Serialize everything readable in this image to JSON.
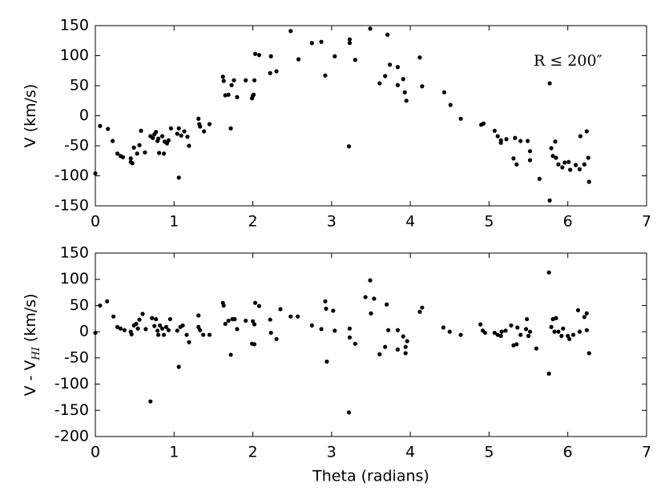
{
  "chart_data": [
    {
      "type": "scatter",
      "ylabel": "V (km/s)",
      "annotation": "R ≤ 200″",
      "color": "#000000",
      "xlim": [
        0,
        7
      ],
      "xticks": [
        0,
        1,
        2,
        3,
        4,
        5,
        6,
        7
      ],
      "ylim": [
        -150,
        150
      ],
      "yticks": [
        -150,
        -100,
        -50,
        0,
        50,
        100,
        150
      ],
      "x": [
        0,
        0.06,
        0.16,
        0.22,
        0.28,
        0.32,
        0.35,
        0.45,
        0.45,
        0.47,
        0.49,
        0.53,
        0.56,
        0.58,
        0.63,
        0.7,
        0.73,
        0.75,
        0.77,
        0.79,
        0.8,
        0.81,
        0.85,
        0.87,
        0.88,
        0.91,
        0.93,
        0.96,
        1.04,
        1.06,
        1.06,
        1.09,
        1.13,
        1.17,
        1.19,
        1.31,
        1.32,
        1.33,
        1.38,
        1.45,
        1.62,
        1.63,
        1.65,
        1.69,
        1.72,
        1.73,
        1.76,
        1.8,
        1.91,
        1.99,
        2.0,
        2.01,
        2.02,
        2.03,
        2.08,
        2.22,
        2.23,
        2.3,
        2.48,
        2.58,
        2.75,
        2.87,
        2.92,
        3.04,
        3.22,
        3.23,
        3.23,
        3.3,
        3.49,
        3.61,
        3.68,
        3.71,
        3.74,
        3.84,
        3.84,
        3.91,
        3.93,
        3.95,
        4.12,
        4.15,
        4.43,
        4.51,
        4.64,
        4.9,
        4.93,
        5.07,
        5.11,
        5.15,
        5.15,
        5.22,
        5.31,
        5.33,
        5.35,
        5.4,
        5.49,
        5.52,
        5.52,
        5.64,
        5.77,
        5.77,
        5.79,
        5.81,
        5.84,
        5.85,
        5.88,
        5.93,
        5.96,
        6.01,
        6.03,
        6.1,
        6.15,
        6.16,
        6.21,
        6.24,
        6.26,
        6.27
      ],
      "values": [
        -96,
        -17,
        -22,
        -42,
        -63,
        -67,
        -69,
        -71,
        -77,
        -79,
        -53,
        -63,
        -49,
        -25,
        -61,
        -34,
        -37,
        -31,
        -27,
        -42,
        -38,
        -62,
        -34,
        -63,
        -43,
        -46,
        -41,
        -21,
        -30,
        -21,
        -103,
        -33,
        -26,
        -35,
        -50,
        -5,
        -14,
        -18,
        -26,
        -14,
        65,
        58,
        34,
        35,
        -21,
        51,
        59,
        31,
        59,
        29,
        33,
        35,
        59,
        103,
        101,
        71,
        99,
        74,
        141,
        94,
        121,
        123,
        67,
        99,
        -51,
        127,
        121,
        93,
        145,
        54,
        66,
        135,
        85,
        81,
        51,
        61,
        39,
        25,
        97,
        49,
        39,
        18,
        -5,
        -15,
        -13,
        -25,
        -34,
        -41,
        -45,
        -39,
        -71,
        -37,
        -81,
        -42,
        -42,
        -59,
        -74,
        -105,
        54,
        -141,
        -54,
        -67,
        -43,
        -70,
        -81,
        -86,
        -78,
        -77,
        -90,
        -82,
        -89,
        -34,
        -81,
        -26,
        -70,
        -110
      ]
    },
    {
      "type": "scatter",
      "ylabel": [
        "V - V",
        "HI",
        " (km/s)"
      ],
      "xlabel": "Theta (radians)",
      "color": "#000000",
      "xlim": [
        0,
        7
      ],
      "xticks": [
        0,
        1,
        2,
        3,
        4,
        5,
        6,
        7
      ],
      "ylim": [
        -200,
        150
      ],
      "yticks": [
        -200,
        -150,
        -100,
        -50,
        0,
        50,
        100,
        150
      ],
      "x": [
        0,
        0.06,
        0.15,
        0.23,
        0.28,
        0.32,
        0.37,
        0.45,
        0.46,
        0.49,
        0.52,
        0.54,
        0.56,
        0.6,
        0.64,
        0.7,
        0.72,
        0.75,
        0.77,
        0.79,
        0.8,
        0.82,
        0.85,
        0.87,
        0.9,
        0.93,
        0.95,
        1.04,
        1.06,
        1.08,
        1.11,
        1.16,
        1.19,
        1.31,
        1.31,
        1.33,
        1.37,
        1.45,
        1.62,
        1.63,
        1.65,
        1.69,
        1.72,
        1.74,
        1.77,
        1.8,
        1.91,
        1.99,
        2.0,
        2.02,
        2.02,
        2.03,
        2.08,
        2.22,
        2.23,
        2.3,
        2.35,
        2.48,
        2.57,
        2.75,
        2.87,
        2.92,
        2.94,
        2.93,
        3.02,
        3.04,
        3.22,
        3.23,
        3.23,
        3.3,
        3.43,
        3.49,
        3.5,
        3.54,
        3.61,
        3.68,
        3.7,
        3.72,
        3.84,
        3.84,
        3.91,
        3.94,
        3.94,
        3.96,
        4.12,
        4.15,
        4.42,
        4.5,
        4.64,
        4.89,
        4.92,
        4.95,
        5.07,
        5.11,
        5.15,
        5.16,
        5.21,
        5.28,
        5.31,
        5.35,
        5.36,
        5.4,
        5.47,
        5.48,
        5.5,
        5.52,
        5.6,
        5.76,
        5.76,
        5.79,
        5.81,
        5.83,
        5.85,
        5.88,
        5.92,
        5.94,
        6.0,
        6.02,
        6.07,
        6.13,
        6.15,
        6.21,
        6.24,
        6.27,
        6.24
      ],
      "values": [
        -2,
        50,
        58,
        29,
        9,
        6,
        3,
        0,
        -5,
        12,
        15,
        6,
        23,
        34,
        5,
        -133,
        26,
        11,
        24,
        2,
        -6,
        12,
        6,
        -6,
        9,
        3,
        24,
        2,
        -67,
        9,
        12,
        -6,
        -20,
        31,
        9,
        3,
        -6,
        -6,
        55,
        50,
        15,
        21,
        -44,
        24,
        24,
        5,
        21,
        -23,
        20,
        -24,
        14,
        55,
        49,
        23,
        -2,
        -14,
        43,
        29,
        29,
        12,
        5,
        58,
        -57,
        44,
        40,
        2,
        -154,
        6,
        -11,
        -23,
        66,
        98,
        35,
        63,
        -43,
        -29,
        52,
        3,
        3,
        -34,
        -9,
        -29,
        -41,
        -18,
        38,
        46,
        8,
        0,
        -6,
        14,
        2,
        -2,
        -2,
        -6,
        -8,
        0,
        2,
        12,
        -26,
        -24,
        8,
        -6,
        5,
        24,
        -8,
        0,
        -32,
        113,
        -80,
        9,
        24,
        0,
        26,
        0,
        -8,
        6,
        -8,
        -14,
        -6,
        41,
        0,
        28,
        3,
        -41,
        35
      ]
    }
  ]
}
